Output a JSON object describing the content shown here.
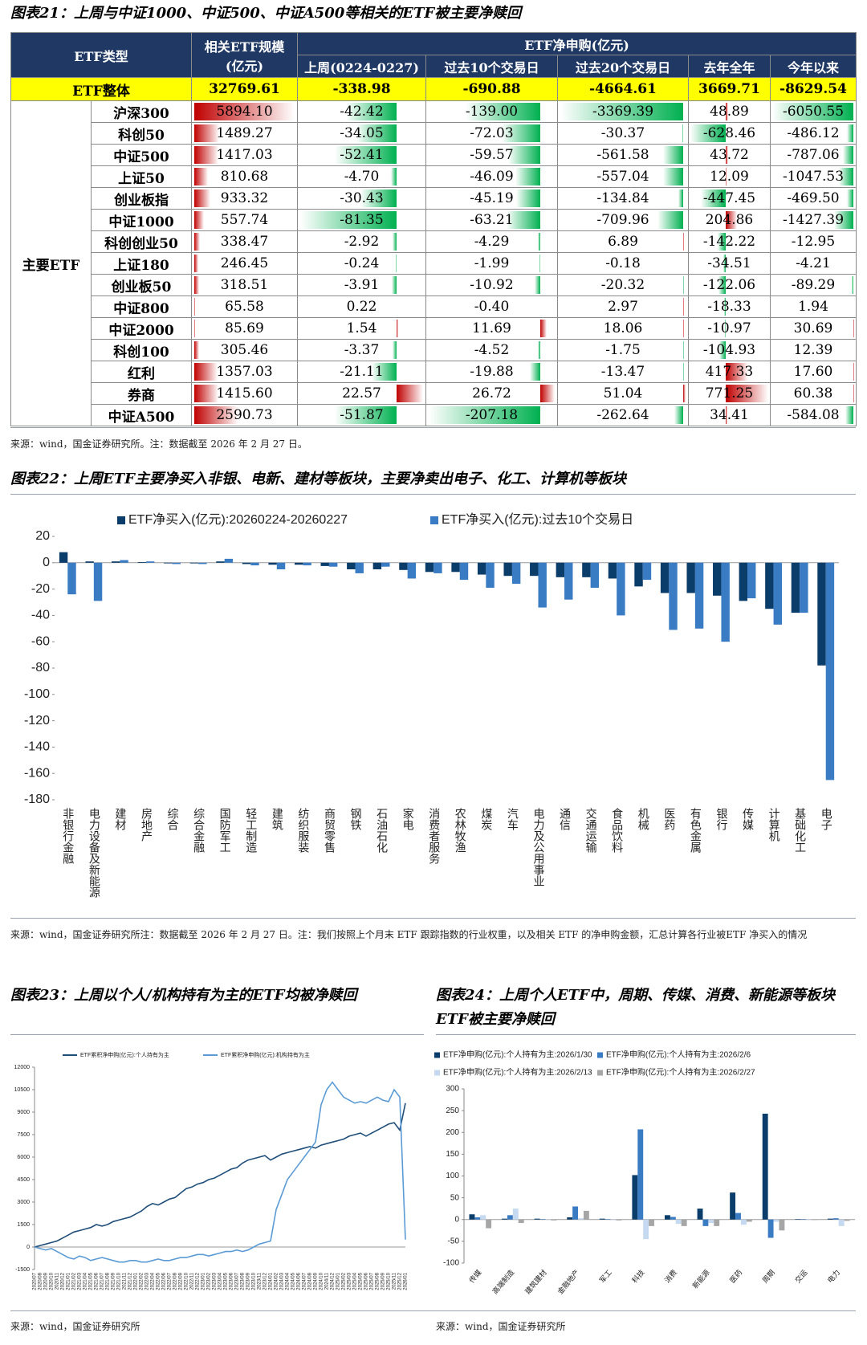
{
  "fig21": {
    "title": "图表21：上周与中证1000、中证500、中证A500等相关的ETF被主要净赎回",
    "header": {
      "type": "ETF类型",
      "size": [
        "相关ETF规模",
        "(亿元)"
      ],
      "flow": "ETF净申购(亿元)",
      "periods": [
        "上周(0224-0227)",
        "过去10个交易日",
        "过去20个交易日",
        "去年全年",
        "今年以来"
      ]
    },
    "total": {
      "label": "ETF整体",
      "values": [
        "32769.61",
        "-338.98",
        "-690.88",
        "-4664.61",
        "3669.71",
        "-8629.54"
      ]
    },
    "group": "主要ETF",
    "rows": [
      {
        "name": "沪深300",
        "values": [
          "5894.10",
          "-42.42",
          "-139.00",
          "-3369.39",
          "48.89",
          "-6050.55"
        ]
      },
      {
        "name": "科创50",
        "values": [
          "1489.27",
          "-34.05",
          "-72.03",
          "-30.37",
          "-628.46",
          "-486.12"
        ]
      },
      {
        "name": "中证500",
        "values": [
          "1417.03",
          "-52.41",
          "-59.57",
          "-561.58",
          "43.72",
          "-787.06"
        ]
      },
      {
        "name": "上证50",
        "values": [
          "810.68",
          "-4.70",
          "-46.09",
          "-557.04",
          "12.09",
          "-1047.53"
        ]
      },
      {
        "name": "创业板指",
        "values": [
          "933.32",
          "-30.43",
          "-45.19",
          "-134.84",
          "-447.45",
          "-469.50"
        ]
      },
      {
        "name": "中证1000",
        "values": [
          "557.74",
          "-81.35",
          "-63.21",
          "-709.96",
          "204.86",
          "-1427.39"
        ]
      },
      {
        "name": "科创创业50",
        "values": [
          "338.47",
          "-2.92",
          "-4.29",
          "6.89",
          "-142.22",
          "-12.95"
        ]
      },
      {
        "name": "上证180",
        "values": [
          "246.45",
          "-0.24",
          "-1.99",
          "-0.18",
          "-34.51",
          "-4.21"
        ]
      },
      {
        "name": "创业板50",
        "values": [
          "318.51",
          "-3.91",
          "-10.92",
          "-20.32",
          "-122.06",
          "-89.29"
        ]
      },
      {
        "name": "中证800",
        "values": [
          "65.58",
          "0.22",
          "-0.40",
          "2.97",
          "-18.33",
          "1.94"
        ]
      },
      {
        "name": "中证2000",
        "values": [
          "85.69",
          "1.54",
          "11.69",
          "18.06",
          "-10.97",
          "30.69"
        ]
      },
      {
        "name": "科创100",
        "values": [
          "305.46",
          "-3.37",
          "-4.52",
          "-1.75",
          "-104.93",
          "12.39"
        ]
      },
      {
        "name": "红利",
        "values": [
          "1357.03",
          "-21.11",
          "-19.88",
          "-13.47",
          "417.33",
          "17.60"
        ]
      },
      {
        "name": "券商",
        "values": [
          "1415.60",
          "22.57",
          "26.72",
          "51.04",
          "771.25",
          "60.38"
        ]
      },
      {
        "name": "中证A500",
        "values": [
          "2590.73",
          "-51.87",
          "-207.18",
          "-262.64",
          "34.41",
          "-584.08"
        ]
      }
    ],
    "source": "来源：wind，国金证券研究所。注：数据截至 2026 年 2 月 27 日。"
  },
  "chart_data": [
    {
      "type": "bar",
      "title": "图表22：上周ETF主要净买入非银、电新、建材等板块，主要净卖出电子、化工、计算机等板块",
      "categories": [
        "非银行金融",
        "电力设备及新能源",
        "建材",
        "房地产",
        "综合",
        "综合金融",
        "国防军工",
        "轻工制造",
        "建筑",
        "纺织服装",
        "商贸零售",
        "钢铁",
        "石油石化",
        "家电",
        "消费者服务",
        "农林牧渔",
        "煤炭",
        "汽车",
        "电力及公用事业",
        "通信",
        "交通运输",
        "食品饮料",
        "机械",
        "医药",
        "有色金属",
        "银行",
        "传媒",
        "计算机",
        "基础化工",
        "电子"
      ],
      "series": [
        {
          "name": "ETF净买入(亿元):20260224-20260227",
          "color": "#0b3d6b",
          "values": [
            8,
            1,
            1,
            0.5,
            -0.5,
            -0.5,
            1,
            -1,
            -1.5,
            -1.5,
            -2.5,
            -5,
            -5,
            -5.5,
            -7,
            -7,
            -9,
            -10,
            -10,
            -11,
            -11,
            -12,
            -18,
            -23,
            -23,
            -25,
            -29,
            -35,
            -38,
            -78
          ]
        },
        {
          "name": "ETF净买入(亿元):过去10个交易日",
          "color": "#3a7cc4",
          "values": [
            -24,
            -29,
            2,
            1,
            -1,
            -1,
            3,
            -2,
            -5,
            -2,
            -3,
            -8,
            -3,
            -12,
            -8,
            -13,
            -19,
            -16,
            -34,
            -28,
            -19,
            -40,
            -13,
            -51,
            -50,
            -60,
            -27,
            -47,
            -38,
            -165
          ]
        }
      ],
      "ylim": [
        -180,
        20
      ],
      "yticks": [
        20,
        0,
        -20,
        -40,
        -60,
        -80,
        -100,
        -120,
        -140,
        -160,
        -180
      ],
      "source": "来源：wind，国金证券研究所注：数据截至 2026 年 2 月 27 日。注：我们按照上个月末 ETF 跟踪指数的行业权重，以及相关 ETF 的净申购金额，汇总计算各行业被ETF 净买入的情况"
    },
    {
      "type": "line",
      "title": "图表23：上周以个人/机构持有为主的ETF均被净赎回",
      "categories": [
        "2020/07",
        "2020/08",
        "2020/09",
        "2020/10",
        "2020/11",
        "2020/12",
        "2021/01",
        "2021/02",
        "2021/03",
        "2021/04",
        "2021/05",
        "2021/06",
        "2021/07",
        "2021/08",
        "2021/09",
        "2021/10",
        "2021/11",
        "2021/12",
        "2022/01",
        "2022/02",
        "2022/03",
        "2022/04",
        "2022/05",
        "2022/06",
        "2022/07",
        "2022/08",
        "2022/09",
        "2022/10",
        "2022/11",
        "2022/12",
        "2023/01",
        "2023/02",
        "2023/03",
        "2023/04",
        "2023/05",
        "2023/06",
        "2023/07",
        "2023/08",
        "2023/09",
        "2023/10",
        "2023/11",
        "2023/12",
        "2024/01",
        "2024/02",
        "2024/03",
        "2024/04",
        "2024/05",
        "2024/06",
        "2024/07",
        "2024/08",
        "2024/09",
        "2024/10",
        "2024/11",
        "2024/12",
        "2025/01",
        "2025/02",
        "2025/03",
        "2025/04",
        "2025/05",
        "2025/06",
        "2025/07",
        "2025/08",
        "2025/09",
        "2025/10",
        "2025/11",
        "2025/12",
        "2026/01"
      ],
      "series": [
        {
          "name": "ETF累积净申购(亿元):个人持有为主",
          "color": "#1f4e79",
          "values": [
            0,
            100,
            200,
            300,
            400,
            600,
            800,
            1000,
            1100,
            1200,
            1300,
            1500,
            1400,
            1500,
            1700,
            1800,
            1900,
            2000,
            2200,
            2400,
            2700,
            2900,
            2800,
            3000,
            3200,
            3300,
            3600,
            3900,
            4000,
            4200,
            4300,
            4500,
            4600,
            4800,
            5000,
            5200,
            5300,
            5600,
            5800,
            5900,
            6000,
            6100,
            5800,
            6000,
            6200,
            6300,
            6400,
            6500,
            6600,
            6700,
            6600,
            6800,
            6900,
            7000,
            7100,
            7200,
            7400,
            7500,
            7600,
            7400,
            7600,
            7800,
            8000,
            8200,
            8300,
            7800,
            9600
          ]
        },
        {
          "name": "ETF累积净申购(亿元):机构持有为主",
          "color": "#5b9bd5",
          "values": [
            0,
            -100,
            -200,
            -100,
            -300,
            -500,
            -700,
            -800,
            -600,
            -700,
            -900,
            -800,
            -700,
            -800,
            -900,
            -1000,
            -1000,
            -900,
            -900,
            -1000,
            -1000,
            -900,
            -800,
            -900,
            -900,
            -800,
            -700,
            -700,
            -600,
            -500,
            -500,
            -600,
            -500,
            -400,
            -300,
            -300,
            -200,
            -300,
            -200,
            0,
            200,
            300,
            400,
            2500,
            3500,
            4500,
            5000,
            5500,
            6000,
            6500,
            7000,
            9500,
            10500,
            11000,
            10500,
            10000,
            9800,
            9600,
            9700,
            9600,
            9800,
            10000,
            9800,
            9700,
            10500,
            10000,
            500
          ]
        }
      ],
      "ylim": [
        -1500,
        12000
      ],
      "yticks": [
        -1500,
        0,
        1500,
        3000,
        4500,
        6000,
        7500,
        9000,
        10500,
        12000
      ],
      "source": "来源：wind，国金证券研究所"
    },
    {
      "type": "bar",
      "title": "图表24：上周个人ETF中，周期、传媒、消费、新能源等板块ETF被主要净赎回",
      "categories": [
        "传媒",
        "高端制造",
        "建筑建材",
        "金融地产",
        "军工",
        "科技",
        "消费",
        "新能源",
        "医药",
        "周期",
        "交运",
        "电力"
      ],
      "series": [
        {
          "name": "ETF净申购(亿元):个人持有为主:2026/1/30",
          "color": "#0b3d6b",
          "values": [
            12,
            2,
            2,
            5,
            2,
            102,
            10,
            25,
            62,
            243,
            1,
            2
          ]
        },
        {
          "name": "ETF净申购(亿元):个人持有为主:2026/2/6",
          "color": "#3a7cc4",
          "values": [
            5,
            10,
            1,
            30,
            1,
            207,
            6,
            -15,
            15,
            -42,
            1,
            3
          ]
        },
        {
          "name": "ETF净申购(亿元):个人持有为主:2026/2/13",
          "color": "#c5d9f1",
          "values": [
            10,
            25,
            1,
            3,
            1,
            -45,
            -10,
            -8,
            -12,
            -5,
            1,
            -15
          ]
        },
        {
          "name": "ETF净申购(亿元):个人持有为主:2026/2/27",
          "color": "#a6a6a6",
          "values": [
            -20,
            -8,
            -2,
            20,
            -2,
            -15,
            -15,
            -15,
            -5,
            -25,
            -1,
            -3
          ]
        }
      ],
      "ylim": [
        -100,
        300
      ],
      "yticks": [
        -100,
        -50,
        0,
        50,
        100,
        150,
        200,
        250,
        300
      ],
      "source": "来源：wind，国金证券研究所"
    }
  ]
}
